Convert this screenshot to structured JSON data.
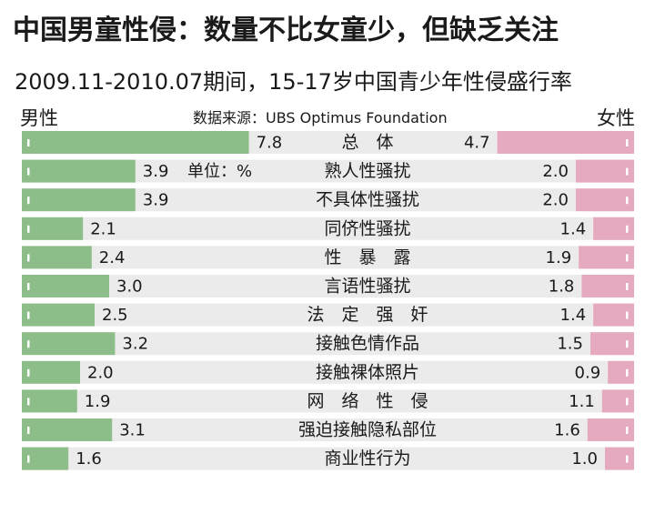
{
  "title": "中国男童性侵：数量不比女童少，但缺乏关注",
  "subtitle": "2009.11-2010.07期间，15-17岁中国青少年性侵盛行率",
  "source": "数据来源：UBS Optimus Foundation",
  "unit_note": "单位：%",
  "colors": {
    "male": "#8dbd88",
    "female": "#e5a9c0",
    "track": "#ebebeb"
  },
  "chart_data": {
    "type": "bar",
    "title": "2009.11-2010.07期间，15-17岁中国青少年性侵盛行率",
    "xlabel": "",
    "ylabel": "",
    "unit": "单位：%",
    "categories": [
      "总　体",
      "熟人性骚扰",
      "不具体性骚扰",
      "同侪性骚扰",
      "性　暴　露",
      "言语性骚扰",
      "法　定　强　奸",
      "接触色情作品",
      "接触裸体照片",
      "网　络　性　侵",
      "强迫接触隐私部位",
      "商业性行为"
    ],
    "series": [
      {
        "name": "男性",
        "values": [
          7.8,
          3.9,
          3.9,
          2.1,
          2.4,
          3.0,
          2.5,
          3.2,
          2.0,
          1.9,
          3.1,
          1.6
        ]
      },
      {
        "name": "女性",
        "values": [
          4.7,
          2.0,
          2.0,
          1.4,
          1.9,
          1.8,
          1.4,
          1.5,
          0.9,
          1.1,
          1.6,
          1.0
        ]
      }
    ],
    "xlim": [
      0,
      8
    ],
    "grid": false,
    "legend": "top"
  }
}
